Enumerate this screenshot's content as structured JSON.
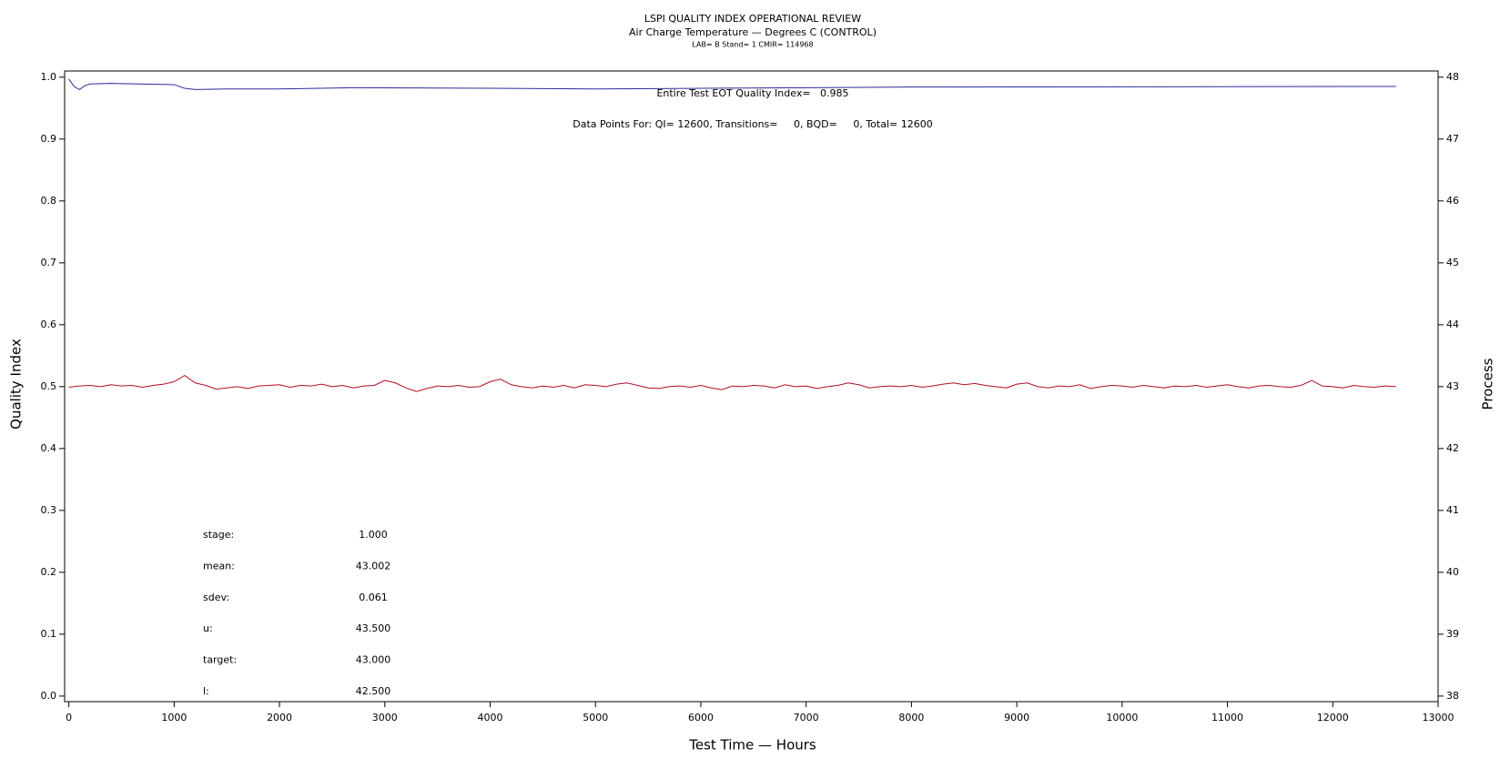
{
  "chart_data": {
    "type": "line",
    "title": "LSPI QUALITY INDEX OPERATIONAL REVIEW",
    "subtitle": "Air Charge Temperature — Degrees C (CONTROL)",
    "subsubtitle": "LAB= B Stand= 1 CMIR= 114968",
    "xlabel": "Test Time — Hours",
    "ylabel": "Quality Index",
    "y2label": "Process",
    "annotations": [
      "Entire Test EOT Quality Index=   0.985",
      "Data Points For: QI= 12600, Transitions=     0, BQD=     0, Total= 12600"
    ],
    "stats": [
      {
        "label": "stage:",
        "value": "1.000"
      },
      {
        "label": "mean:",
        "value": "43.002"
      },
      {
        "label": "sdev:",
        "value": "0.061"
      },
      {
        "label": "u:",
        "value": "43.500"
      },
      {
        "label": "target:",
        "value": "43.000"
      },
      {
        "label": "l:",
        "value": "42.500"
      }
    ],
    "xlim": [
      -40,
      13000
    ],
    "xticks": [
      0,
      1000,
      2000,
      3000,
      4000,
      5000,
      6000,
      7000,
      8000,
      9000,
      10000,
      11000,
      12000,
      13000
    ],
    "ylim": [
      -0.009,
      1.01
    ],
    "yticks": [
      {
        "value": 0,
        "label": "0.0"
      },
      0.1,
      0.2,
      0.3,
      0.4,
      0.5,
      0.6,
      0.7,
      0.8,
      0.9,
      {
        "value": 1,
        "label": "1.0"
      }
    ],
    "y2lim": [
      37.91,
      48.1
    ],
    "y2ticks": [
      38,
      39,
      40,
      41,
      42,
      43,
      44,
      45,
      46,
      47,
      48
    ],
    "series": [
      {
        "color": "#2b2b9b",
        "axis": "y",
        "x": [
          0,
          50,
          100,
          150,
          200,
          400,
          1000,
          1100,
          1200,
          1500,
          2000,
          2700,
          4000,
          5000,
          6000,
          8000,
          12600
        ],
        "values": [
          0.997,
          0.985,
          0.98,
          0.986,
          0.989,
          0.99,
          0.988,
          0.982,
          0.98,
          0.981,
          0.981,
          0.983,
          0.982,
          0.981,
          0.982,
          0.984,
          0.985
        ]
      },
      {
        "color": "#b01020",
        "axis": "y2",
        "x": [
          0,
          100,
          200,
          300,
          400,
          500,
          600,
          700,
          800,
          900,
          1000,
          1100,
          1200,
          1300,
          1400,
          1500,
          1600,
          1700,
          1800,
          1900,
          2000,
          2100,
          2200,
          2300,
          2400,
          2500,
          2600,
          2700,
          2800,
          2900,
          3000,
          3100,
          3200,
          3300,
          3400,
          3500,
          3600,
          3700,
          3800,
          3900,
          4000,
          4100,
          4200,
          4300,
          4400,
          4500,
          4600,
          4700,
          4800,
          4900,
          5000,
          5100,
          5200,
          5300,
          5400,
          5500,
          5600,
          5700,
          5800,
          5900,
          6000,
          6100,
          6200,
          6300,
          6400,
          6500,
          6600,
          6700,
          6800,
          6900,
          7000,
          7100,
          7200,
          7300,
          7400,
          7500,
          7600,
          7700,
          7800,
          7900,
          8000,
          8100,
          8200,
          8300,
          8400,
          8500,
          8600,
          8700,
          8800,
          8900,
          9000,
          9100,
          9200,
          9300,
          9400,
          9500,
          9600,
          9700,
          9800,
          9900,
          10000,
          10100,
          10200,
          10300,
          10400,
          10500,
          10600,
          10700,
          10800,
          10900,
          11000,
          11100,
          11200,
          11300,
          11400,
          11500,
          11600,
          11700,
          11800,
          11900,
          12000,
          12100,
          12200,
          12300,
          12400,
          12500,
          12600
        ],
        "values": [
          42.99,
          43.01,
          43.02,
          43.0,
          43.03,
          43.01,
          43.02,
          42.99,
          43.02,
          43.04,
          43.08,
          43.18,
          43.06,
          43.02,
          42.96,
          42.98,
          43.0,
          42.97,
          43.01,
          43.02,
          43.03,
          42.99,
          43.02,
          43.01,
          43.04,
          43.0,
          43.02,
          42.98,
          43.01,
          43.02,
          43.1,
          43.06,
          42.98,
          42.92,
          42.97,
          43.01,
          43.0,
          43.02,
          42.99,
          43.0,
          43.08,
          43.12,
          43.03,
          43.0,
          42.98,
          43.01,
          42.99,
          43.02,
          42.98,
          43.03,
          43.02,
          43.0,
          43.04,
          43.06,
          43.02,
          42.98,
          42.97,
          43.0,
          43.01,
          42.99,
          43.02,
          42.98,
          42.95,
          43.01,
          43.0,
          43.02,
          43.01,
          42.98,
          43.03,
          43.0,
          43.01,
          42.97,
          43.0,
          43.02,
          43.06,
          43.03,
          42.98,
          43.0,
          43.01,
          43.0,
          43.02,
          42.99,
          43.01,
          43.04,
          43.06,
          43.03,
          43.05,
          43.02,
          43.0,
          42.98,
          43.04,
          43.06,
          43.0,
          42.98,
          43.01,
          43.0,
          43.03,
          42.97,
          43.0,
          43.02,
          43.01,
          42.99,
          43.02,
          43.0,
          42.98,
          43.01,
          43.0,
          43.02,
          42.99,
          43.01,
          43.03,
          43.0,
          42.98,
          43.01,
          43.02,
          43.0,
          42.99,
          43.02,
          43.1,
          43.01,
          43.0,
          42.98,
          43.02,
          43.0,
          42.99,
          43.01,
          43.0
        ]
      }
    ]
  }
}
